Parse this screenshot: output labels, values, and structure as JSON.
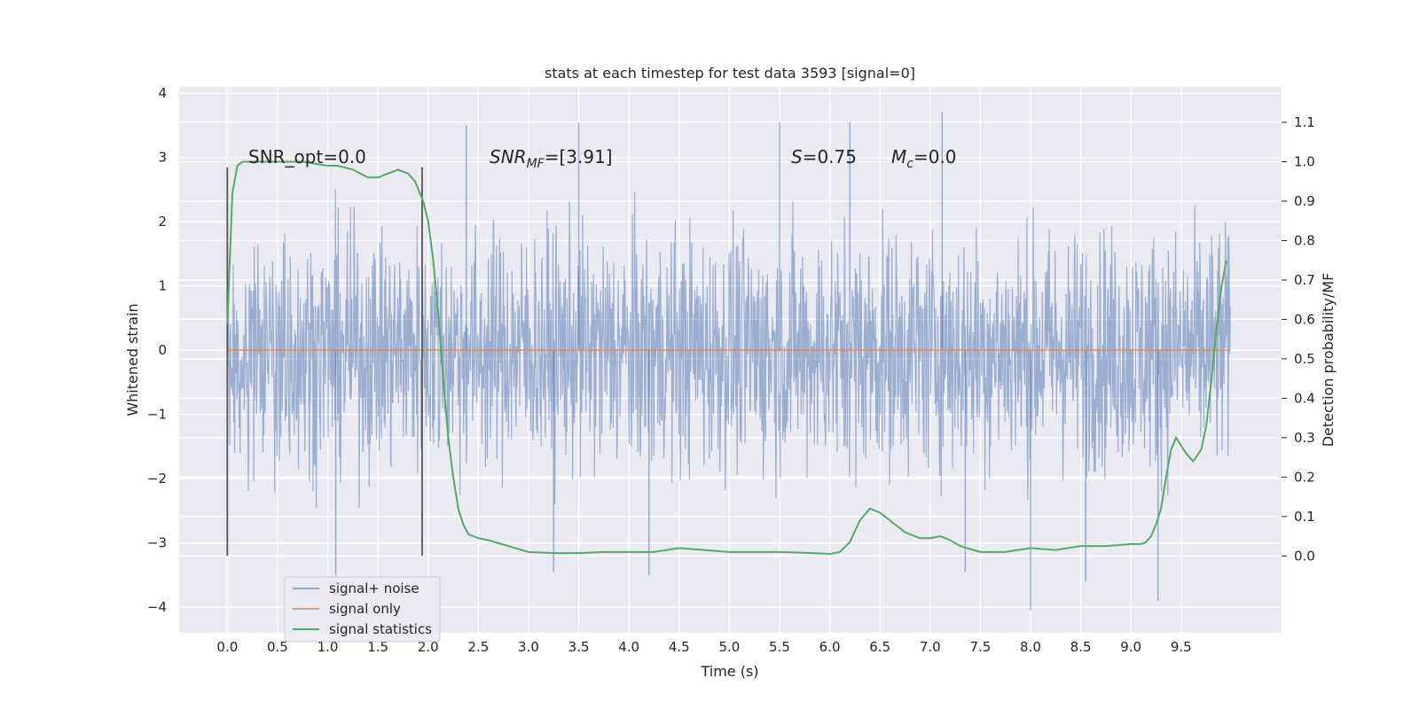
{
  "chart_data": {
    "type": "line",
    "title": "stats at each timestep for test data 3593 [signal=0]",
    "xlabel": "Time (s)",
    "ylabel": "Whitened strain",
    "y2label": "Detection probability/MF",
    "xlim": [
      -0.48,
      10.5
    ],
    "ylim": [
      -4.4,
      4.1
    ],
    "y2lim": [
      -0.195,
      1.19
    ],
    "xticks": [
      0.0,
      0.5,
      1.0,
      1.5,
      2.0,
      2.5,
      3.0,
      3.5,
      4.0,
      4.5,
      5.0,
      5.5,
      6.0,
      6.5,
      7.0,
      7.5,
      8.0,
      8.5,
      9.0,
      9.5
    ],
    "xtick_labels": [
      "0.0",
      "0.5",
      "1.0",
      "1.5",
      "2.0",
      "2.5",
      "3.0",
      "3.5",
      "4.0",
      "4.5",
      "5.0",
      "5.5",
      "6.0",
      "6.5",
      "7.0",
      "7.5",
      "8.0",
      "8.5",
      "9.0",
      "9.5"
    ],
    "yticks": [
      -4,
      -3,
      -2,
      -1,
      0,
      1,
      2,
      3,
      4
    ],
    "ytick_labels": [
      "−4",
      "−3",
      "−2",
      "−1",
      "0",
      "1",
      "2",
      "3",
      "4"
    ],
    "y2ticks": [
      0.0,
      0.1,
      0.2,
      0.3,
      0.4,
      0.5,
      0.6,
      0.7,
      0.8,
      0.9,
      1.0,
      1.1
    ],
    "y2tick_labels": [
      "0.0",
      "0.1",
      "0.2",
      "0.3",
      "0.4",
      "0.5",
      "0.6",
      "0.7",
      "0.8",
      "0.9",
      "1.0",
      "1.1"
    ],
    "grid": true,
    "legend_position": "bottom-left",
    "annotations": [
      {
        "text": "SNR_opt=0.0",
        "x": 0.2,
        "y": 2.95
      },
      {
        "text_main": "SNR",
        "text_sub": "MF",
        "text_rest": "=[3.91]",
        "x": 2.6,
        "y": 2.95
      },
      {
        "text_main": "S",
        "text_rest": "=0.75",
        "x": 5.6,
        "y": 2.95
      },
      {
        "text_main": "M",
        "text_sub": "c",
        "text_rest": "=0.0",
        "x": 6.6,
        "y": 2.95
      }
    ],
    "vlines": [
      {
        "x": 0.0,
        "ymin": -3.2,
        "ymax": 2.85
      },
      {
        "x": 1.94,
        "ymin": -3.2,
        "ymax": 2.85
      }
    ],
    "series": [
      {
        "name": "signal+ noise",
        "color": "#4c72b0",
        "style": "noise",
        "x_range": [
          0.0,
          9.99
        ],
        "typical_amplitude": 1.5,
        "peaks": [
          {
            "x": 1.08,
            "y": -3.5
          },
          {
            "x": 2.38,
            "y": 3.5
          },
          {
            "x": 3.25,
            "y": -3.45
          },
          {
            "x": 3.5,
            "y": 3.55
          },
          {
            "x": 4.2,
            "y": -3.5
          },
          {
            "x": 5.5,
            "y": 3.55
          },
          {
            "x": 6.2,
            "y": 3.55
          },
          {
            "x": 7.12,
            "y": 3.7
          },
          {
            "x": 7.35,
            "y": -3.45
          },
          {
            "x": 8.0,
            "y": -4.05
          },
          {
            "x": 8.55,
            "y": -3.6
          },
          {
            "x": 9.27,
            "y": -3.9
          }
        ]
      },
      {
        "name": "signal only",
        "color": "#dd8452",
        "x": [
          0.0,
          9.99
        ],
        "values": [
          0.0,
          0.0
        ]
      },
      {
        "name": "signal statistics",
        "color": "#55a868",
        "axis": "right",
        "x": [
          0.0,
          0.05,
          0.1,
          0.15,
          0.25,
          0.5,
          0.75,
          1.0,
          1.1,
          1.25,
          1.4,
          1.5,
          1.6,
          1.7,
          1.8,
          1.87,
          1.95,
          2.0,
          2.05,
          2.1,
          2.15,
          2.2,
          2.25,
          2.3,
          2.35,
          2.4,
          2.5,
          2.6,
          2.8,
          3.0,
          3.25,
          3.5,
          3.75,
          4.0,
          4.25,
          4.5,
          4.75,
          5.0,
          5.25,
          5.5,
          5.75,
          6.0,
          6.1,
          6.2,
          6.3,
          6.4,
          6.5,
          6.6,
          6.75,
          6.9,
          7.0,
          7.1,
          7.2,
          7.3,
          7.5,
          7.75,
          8.0,
          8.25,
          8.5,
          8.75,
          9.0,
          9.1,
          9.15,
          9.2,
          9.25,
          9.3,
          9.35,
          9.4,
          9.45,
          9.5,
          9.55,
          9.62,
          9.7,
          9.75,
          9.8,
          9.85,
          9.9,
          9.95
        ],
        "values": [
          0.59,
          0.92,
          0.99,
          1.0,
          1.0,
          1.0,
          1.0,
          0.99,
          0.99,
          0.98,
          0.96,
          0.96,
          0.97,
          0.98,
          0.97,
          0.95,
          0.9,
          0.85,
          0.75,
          0.62,
          0.45,
          0.3,
          0.2,
          0.12,
          0.08,
          0.055,
          0.045,
          0.04,
          0.025,
          0.01,
          0.007,
          0.007,
          0.01,
          0.01,
          0.01,
          0.02,
          0.015,
          0.01,
          0.01,
          0.01,
          0.008,
          0.005,
          0.01,
          0.035,
          0.09,
          0.12,
          0.11,
          0.09,
          0.06,
          0.045,
          0.045,
          0.05,
          0.04,
          0.025,
          0.01,
          0.01,
          0.02,
          0.015,
          0.025,
          0.025,
          0.03,
          0.03,
          0.035,
          0.05,
          0.08,
          0.12,
          0.2,
          0.27,
          0.3,
          0.28,
          0.26,
          0.24,
          0.27,
          0.33,
          0.44,
          0.57,
          0.68,
          0.75
        ]
      }
    ]
  }
}
